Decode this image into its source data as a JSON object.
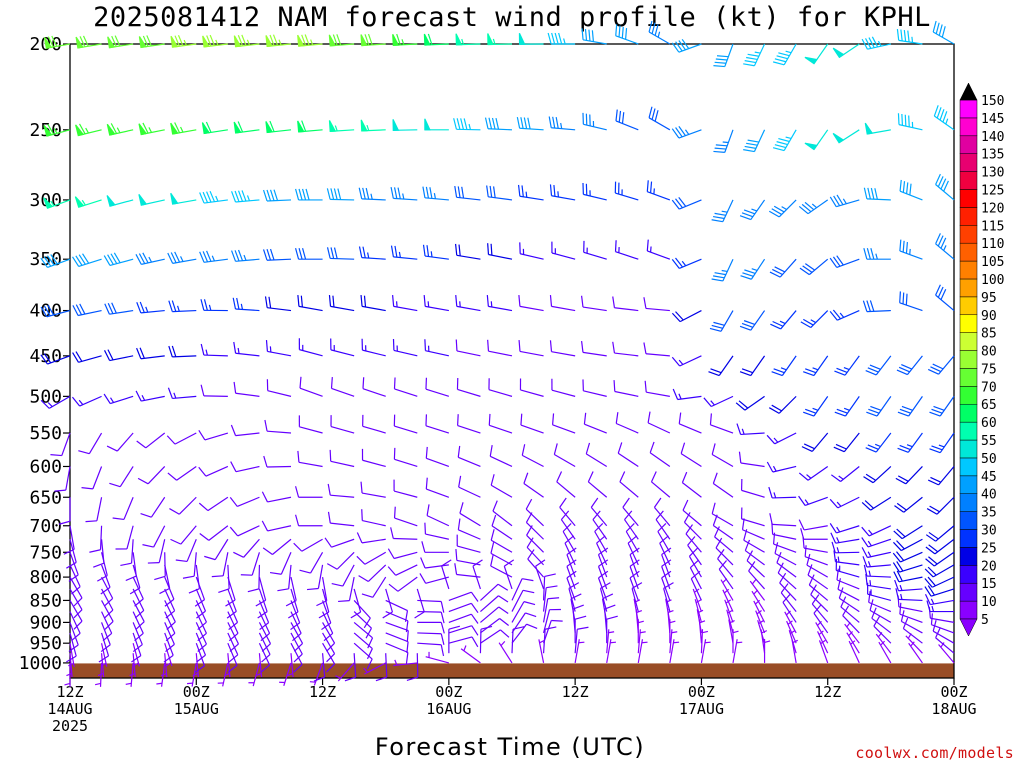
{
  "chart_data": {
    "type": "wind_barb_profile",
    "title": "2025081412 NAM forecast wind profile (kt) for KPHL",
    "xlabel": "Forecast Time (UTC)",
    "credit": "coolwx.com/models",
    "y_axis": {
      "label": "",
      "scale": "log",
      "range": [
        1040,
        200
      ],
      "inverted": true,
      "ticks": [
        200,
        250,
        300,
        350,
        400,
        450,
        500,
        550,
        600,
        650,
        700,
        750,
        800,
        850,
        900,
        950,
        1000
      ]
    },
    "x_axis": {
      "range_hours": [
        0,
        84
      ],
      "ticks": [
        {
          "hour": 0,
          "lines": [
            "12Z",
            "14AUG",
            "2025"
          ]
        },
        {
          "hour": 12,
          "lines": [
            "00Z",
            "15AUG"
          ]
        },
        {
          "hour": 24,
          "lines": [
            "12Z"
          ]
        },
        {
          "hour": 36,
          "lines": [
            "00Z",
            "16AUG"
          ]
        },
        {
          "hour": 48,
          "lines": [
            "12Z"
          ]
        },
        {
          "hour": 60,
          "lines": [
            "00Z",
            "17AUG"
          ]
        },
        {
          "hour": 72,
          "lines": [
            "12Z"
          ]
        },
        {
          "hour": 84,
          "lines": [
            "00Z",
            "18AUG"
          ]
        }
      ]
    },
    "forecast_hours": [
      0,
      3,
      6,
      9,
      12,
      15,
      18,
      21,
      24,
      27,
      30,
      33,
      36,
      39,
      42,
      45,
      48,
      51,
      54,
      57,
      60,
      63,
      66,
      69,
      72,
      75,
      78,
      81,
      84
    ],
    "levels_hPa": [
      1000,
      975,
      950,
      925,
      900,
      875,
      850,
      825,
      800,
      775,
      750,
      725,
      700,
      650,
      600,
      550,
      500,
      450,
      400,
      350,
      300,
      250,
      200
    ],
    "keyframes": [
      {
        "level": 200,
        "hours": [
          0,
          24,
          48,
          57,
          63,
          72,
          84
        ],
        "dir": [
          260,
          265,
          270,
          300,
          200,
          215,
          300
        ],
        "spd": [
          70,
          75,
          45,
          35,
          40,
          50,
          40
        ]
      },
      {
        "level": 250,
        "hours": [
          0,
          24,
          48,
          57,
          63,
          72,
          84
        ],
        "dir": [
          255,
          265,
          275,
          300,
          200,
          215,
          305
        ],
        "spd": [
          65,
          60,
          35,
          30,
          35,
          50,
          45
        ]
      },
      {
        "level": 300,
        "hours": [
          0,
          24,
          48,
          57,
          63,
          72,
          84
        ],
        "dir": [
          250,
          270,
          280,
          290,
          205,
          235,
          310
        ],
        "spd": [
          55,
          40,
          25,
          25,
          35,
          35,
          40
        ]
      },
      {
        "level": 350,
        "hours": [
          0,
          24,
          48,
          57,
          63,
          72,
          84
        ],
        "dir": [
          250,
          270,
          285,
          290,
          205,
          230,
          310
        ],
        "spd": [
          40,
          30,
          15,
          15,
          35,
          30,
          35
        ]
      },
      {
        "level": 400,
        "hours": [
          0,
          24,
          48,
          57,
          63,
          72,
          84
        ],
        "dir": [
          255,
          280,
          280,
          275,
          210,
          225,
          310
        ],
        "spd": [
          30,
          20,
          10,
          10,
          30,
          25,
          30
        ]
      },
      {
        "level": 450,
        "hours": [
          0,
          24,
          48,
          57,
          63,
          72,
          84
        ],
        "dir": [
          250,
          285,
          280,
          275,
          215,
          215,
          220
        ],
        "spd": [
          20,
          15,
          10,
          10,
          20,
          25,
          30
        ]
      },
      {
        "level": 500,
        "hours": [
          0,
          24,
          48,
          57,
          63,
          72,
          84
        ],
        "dir": [
          240,
          290,
          285,
          280,
          245,
          215,
          215
        ],
        "spd": [
          15,
          10,
          10,
          10,
          15,
          25,
          30
        ]
      },
      {
        "level": 550,
        "hours": [
          0,
          24,
          48,
          57,
          63,
          72,
          84
        ],
        "dir": [
          200,
          285,
          290,
          295,
          290,
          220,
          215
        ],
        "spd": [
          10,
          10,
          10,
          10,
          10,
          20,
          25
        ]
      },
      {
        "level": 600,
        "hours": [
          0,
          24,
          48,
          57,
          63,
          72,
          84
        ],
        "dir": [
          190,
          280,
          300,
          305,
          300,
          235,
          220
        ],
        "spd": [
          10,
          10,
          10,
          10,
          10,
          15,
          20
        ]
      },
      {
        "level": 650,
        "hours": [
          0,
          24,
          48,
          57,
          63,
          72,
          84
        ],
        "dir": [
          180,
          270,
          310,
          310,
          305,
          250,
          225
        ],
        "spd": [
          10,
          10,
          10,
          10,
          10,
          15,
          20
        ]
      },
      {
        "level": 700,
        "hours": [
          0,
          24,
          48,
          57,
          63,
          72,
          84
        ],
        "dir": [
          170,
          270,
          320,
          320,
          300,
          260,
          230
        ],
        "spd": [
          10,
          10,
          10,
          10,
          10,
          10,
          20
        ]
      },
      {
        "level": 750,
        "hours": [
          0,
          24,
          48,
          57,
          63,
          72,
          84
        ],
        "dir": [
          160,
          210,
          330,
          330,
          310,
          280,
          235
        ],
        "spd": [
          10,
          10,
          10,
          10,
          10,
          10,
          20
        ]
      },
      {
        "level": 800,
        "hours": [
          0,
          24,
          48,
          57,
          63,
          72,
          84
        ],
        "dir": [
          150,
          170,
          340,
          340,
          320,
          300,
          245
        ],
        "spd": [
          10,
          10,
          10,
          10,
          10,
          10,
          20
        ]
      },
      {
        "level": 850,
        "hours": [
          0,
          24,
          48,
          57,
          63,
          72,
          84
        ],
        "dir": [
          150,
          160,
          340,
          340,
          330,
          310,
          260
        ],
        "spd": [
          10,
          10,
          10,
          10,
          5,
          10,
          15
        ]
      },
      {
        "level": 900,
        "hours": [
          0,
          24,
          48,
          57,
          63,
          72,
          84
        ],
        "dir": [
          160,
          150,
          350,
          350,
          340,
          320,
          280
        ],
        "spd": [
          10,
          10,
          10,
          5,
          5,
          10,
          10
        ]
      },
      {
        "level": 950,
        "hours": [
          0,
          24,
          48,
          57,
          63,
          72,
          84
        ],
        "dir": [
          170,
          150,
          360,
          360,
          350,
          330,
          300
        ],
        "spd": [
          5,
          10,
          10,
          5,
          5,
          5,
          10
        ]
      },
      {
        "level": 1000,
        "hours": [
          0,
          24,
          48,
          57,
          63,
          72,
          84
        ],
        "dir": [
          180,
          200,
          10,
          10,
          10,
          340,
          320
        ],
        "spd": [
          5,
          5,
          5,
          5,
          5,
          5,
          5
        ]
      }
    ],
    "colorbar": {
      "labels": [
        5,
        10,
        15,
        20,
        25,
        30,
        35,
        40,
        45,
        50,
        55,
        60,
        65,
        70,
        75,
        80,
        85,
        90,
        95,
        100,
        105,
        110,
        115,
        120,
        125,
        130,
        135,
        140,
        145,
        150
      ],
      "colors": [
        "#8a00ff",
        "#6600ff",
        "#3a00ff",
        "#0000e6",
        "#0033ff",
        "#0055ff",
        "#0080ff",
        "#00a0ff",
        "#00c8ff",
        "#00e8d8",
        "#00ffb0",
        "#00ff66",
        "#33ff33",
        "#66ff33",
        "#99ff33",
        "#ccff33",
        "#ffff00",
        "#ffcc00",
        "#ffa000",
        "#ff8000",
        "#ff6000",
        "#ff4000",
        "#ff2000",
        "#ff0000",
        "#f00040",
        "#e80070",
        "#e000a0",
        "#ff00d0",
        "#ff00ff"
      ]
    },
    "ground": {
      "color": "#994d26"
    }
  }
}
